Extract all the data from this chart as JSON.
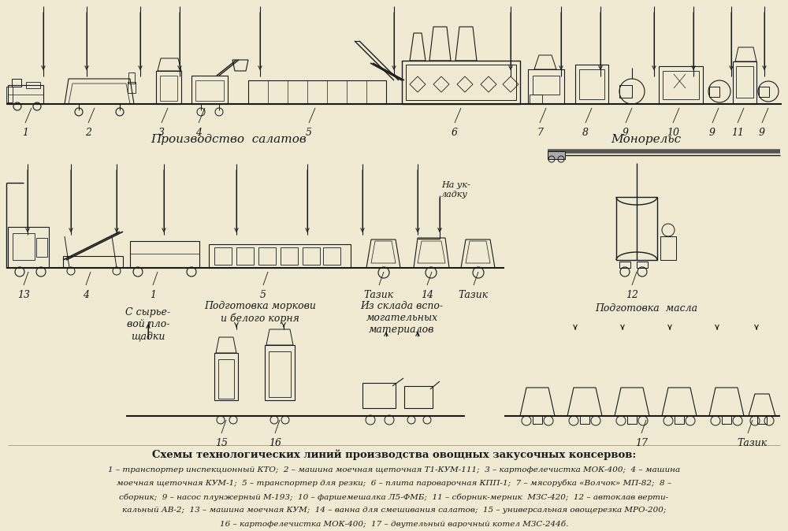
{
  "bg_color": "#f0ead2",
  "line_color": "#1a1a1a",
  "fig_w": 10.0,
  "fig_h": 6.74,
  "dpi": 100,
  "title": "Схемы технологических линий производства овощных закусочных консервов:",
  "caption": [
    "1 – транспортер инспекционный КТО;  2 – машина моечная щеточная Т1-КУМ-111;  3 – картофелечистка МОК-400;  4 – машина",
    "моечная щеточная КУМ-1;  5 – транспортер для резки;  6 – плита пароварочная КПП-1;  7 – мясорубка «Волчок» МП-82;  8 –",
    "сборник;  9 – насос плунжерный М-193;  10 – фаршемешалка Л5-ФМБ;  11 – сборник-мерник  МЗС-420;  12 – автоклав верти-",
    "кальный АВ-2;  13 – машина моечная КУМ;  14 – ванна для смешивания салатов;  15 – универсальная овощерезка МРО-200;",
    "16 – картофелечистка МОК-400;  17 – двутельный варочный котел МЗС-244б."
  ],
  "label_prod_salatov": "Производство  салатов",
  "label_monorels": "Монорельс",
  "label_na_ukladku": "На ук-\nладку",
  "label_s_syrie": "С сырье-\nвой пло-\nщадки",
  "label_podg_morkovi": "Подготовка моркови\nи белого корня",
  "label_iz_sklada": "Из склада вспо-\nмогательных\nматериалов",
  "label_podg_masla": "Подготовка  масла"
}
